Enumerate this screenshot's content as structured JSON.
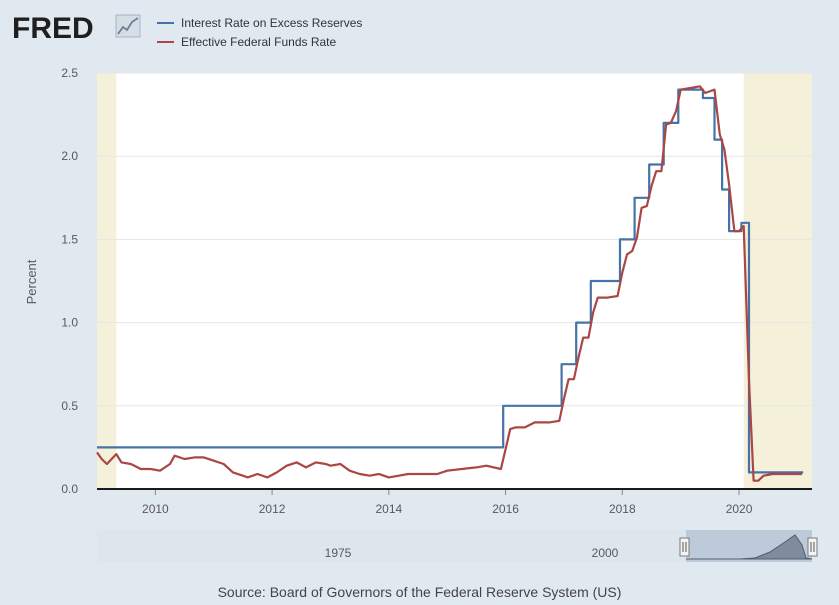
{
  "logo": {
    "text": "FRED"
  },
  "source_text": "Source: Board of Governors of the Federal Reserve System (US)",
  "colors": {
    "ioer": "#4572a7",
    "effr": "#aa4643",
    "recession": "#f4f0d9",
    "plot_bg": "#ffffff",
    "page_bg": "#e1e9f0"
  },
  "navigator": {
    "labels": [
      "1975",
      "2000"
    ]
  },
  "chart_data": {
    "type": "line",
    "ylabel": "Percent",
    "xlim": [
      2009.0,
      2021.25
    ],
    "ylim": [
      0,
      2.5
    ],
    "x_ticks": [
      "2010",
      "2012",
      "2014",
      "2016",
      "2018",
      "2020"
    ],
    "y_ticks": [
      "0.0",
      "0.5",
      "1.0",
      "1.5",
      "2.0",
      "2.5"
    ],
    "legend": "top-left",
    "recessions": [
      [
        2009.0,
        2009.33
      ],
      [
        2020.08,
        2021.25
      ]
    ],
    "series": [
      {
        "name": "Interest Rate on Excess Reserves",
        "points": [
          [
            2009.0,
            0.25
          ],
          [
            2015.96,
            0.25
          ],
          [
            2015.96,
            0.5
          ],
          [
            2016.96,
            0.5
          ],
          [
            2016.96,
            0.75
          ],
          [
            2017.21,
            0.75
          ],
          [
            2017.21,
            1.0
          ],
          [
            2017.46,
            1.0
          ],
          [
            2017.46,
            1.25
          ],
          [
            2017.96,
            1.25
          ],
          [
            2017.96,
            1.5
          ],
          [
            2018.21,
            1.5
          ],
          [
            2018.21,
            1.75
          ],
          [
            2018.46,
            1.75
          ],
          [
            2018.46,
            1.95
          ],
          [
            2018.71,
            1.95
          ],
          [
            2018.71,
            2.2
          ],
          [
            2018.96,
            2.2
          ],
          [
            2018.96,
            2.4
          ],
          [
            2019.38,
            2.4
          ],
          [
            2019.38,
            2.35
          ],
          [
            2019.58,
            2.35
          ],
          [
            2019.58,
            2.1
          ],
          [
            2019.71,
            2.1
          ],
          [
            2019.71,
            1.8
          ],
          [
            2019.83,
            1.8
          ],
          [
            2019.83,
            1.55
          ],
          [
            2020.04,
            1.55
          ],
          [
            2020.04,
            1.6
          ],
          [
            2020.17,
            1.6
          ],
          [
            2020.17,
            0.1
          ],
          [
            2021.1,
            0.1
          ]
        ]
      },
      {
        "name": "Effective Federal Funds Rate",
        "points": [
          [
            2009.0,
            0.22
          ],
          [
            2009.08,
            0.18
          ],
          [
            2009.17,
            0.15
          ],
          [
            2009.25,
            0.18
          ],
          [
            2009.33,
            0.21
          ],
          [
            2009.42,
            0.16
          ],
          [
            2009.58,
            0.15
          ],
          [
            2009.75,
            0.12
          ],
          [
            2009.92,
            0.12
          ],
          [
            2010.08,
            0.11
          ],
          [
            2010.25,
            0.15
          ],
          [
            2010.33,
            0.2
          ],
          [
            2010.5,
            0.18
          ],
          [
            2010.67,
            0.19
          ],
          [
            2010.83,
            0.19
          ],
          [
            2011.0,
            0.17
          ],
          [
            2011.17,
            0.15
          ],
          [
            2011.33,
            0.1
          ],
          [
            2011.5,
            0.08
          ],
          [
            2011.58,
            0.07
          ],
          [
            2011.75,
            0.09
          ],
          [
            2011.92,
            0.07
          ],
          [
            2012.08,
            0.1
          ],
          [
            2012.25,
            0.14
          ],
          [
            2012.42,
            0.16
          ],
          [
            2012.58,
            0.13
          ],
          [
            2012.75,
            0.16
          ],
          [
            2012.92,
            0.15
          ],
          [
            2013.0,
            0.14
          ],
          [
            2013.17,
            0.15
          ],
          [
            2013.33,
            0.11
          ],
          [
            2013.5,
            0.09
          ],
          [
            2013.67,
            0.08
          ],
          [
            2013.83,
            0.09
          ],
          [
            2014.0,
            0.07
          ],
          [
            2014.17,
            0.08
          ],
          [
            2014.33,
            0.09
          ],
          [
            2014.5,
            0.09
          ],
          [
            2014.67,
            0.09
          ],
          [
            2014.83,
            0.09
          ],
          [
            2015.0,
            0.11
          ],
          [
            2015.25,
            0.12
          ],
          [
            2015.5,
            0.13
          ],
          [
            2015.67,
            0.14
          ],
          [
            2015.92,
            0.12
          ],
          [
            2016.0,
            0.24
          ],
          [
            2016.08,
            0.36
          ],
          [
            2016.17,
            0.37
          ],
          [
            2016.33,
            0.37
          ],
          [
            2016.5,
            0.4
          ],
          [
            2016.75,
            0.4
          ],
          [
            2016.92,
            0.41
          ],
          [
            2017.0,
            0.54
          ],
          [
            2017.08,
            0.66
          ],
          [
            2017.17,
            0.66
          ],
          [
            2017.25,
            0.79
          ],
          [
            2017.33,
            0.91
          ],
          [
            2017.42,
            0.91
          ],
          [
            2017.5,
            1.06
          ],
          [
            2017.58,
            1.15
          ],
          [
            2017.75,
            1.15
          ],
          [
            2017.92,
            1.16
          ],
          [
            2018.0,
            1.3
          ],
          [
            2018.08,
            1.41
          ],
          [
            2018.17,
            1.43
          ],
          [
            2018.25,
            1.51
          ],
          [
            2018.33,
            1.69
          ],
          [
            2018.42,
            1.7
          ],
          [
            2018.5,
            1.82
          ],
          [
            2018.58,
            1.91
          ],
          [
            2018.67,
            1.91
          ],
          [
            2018.75,
            2.19
          ],
          [
            2018.83,
            2.2
          ],
          [
            2018.92,
            2.27
          ],
          [
            2019.0,
            2.4
          ],
          [
            2019.17,
            2.41
          ],
          [
            2019.33,
            2.42
          ],
          [
            2019.42,
            2.38
          ],
          [
            2019.58,
            2.4
          ],
          [
            2019.67,
            2.13
          ],
          [
            2019.75,
            2.04
          ],
          [
            2019.83,
            1.83
          ],
          [
            2019.92,
            1.55
          ],
          [
            2020.0,
            1.55
          ],
          [
            2020.08,
            1.58
          ],
          [
            2020.17,
            0.65
          ],
          [
            2020.25,
            0.05
          ],
          [
            2020.33,
            0.05
          ],
          [
            2020.42,
            0.08
          ],
          [
            2020.58,
            0.09
          ],
          [
            2020.75,
            0.09
          ],
          [
            2020.92,
            0.09
          ],
          [
            2021.08,
            0.09
          ]
        ]
      }
    ]
  }
}
